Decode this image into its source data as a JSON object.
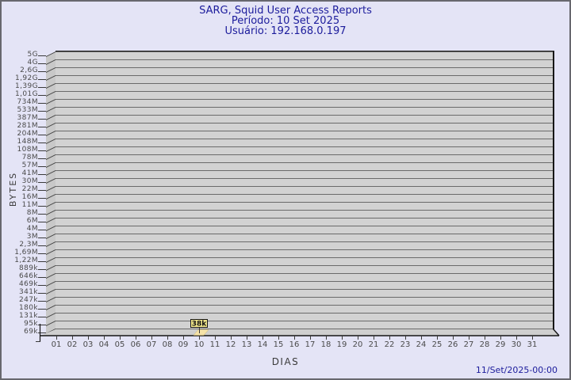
{
  "header": {
    "title": "SARG, Squid User Access Reports",
    "period": "Período: 10 Set 2025",
    "user": "Usuário: 192.168.0.197"
  },
  "footer": {
    "generated": "11/Set/2025-00:00"
  },
  "colors": {
    "background": "#E4E4F6",
    "title_text": "#1C1C9C",
    "plot_band": "#D2D2D2",
    "grid_line": "#6A6A6A",
    "wall": "#C8C8C8",
    "edge": "#161616",
    "axis_text": "#4A4A4A",
    "bar_fill": "#F5E2A8",
    "annotation_fill": "#EFE58A"
  },
  "chart_data": {
    "type": "bar",
    "title": "SARG, Squid User Access Reports",
    "subtitle": [
      "Período: 10 Set 2025",
      "Usuário: 192.168.0.197"
    ],
    "xlabel": "DIAS",
    "ylabel": "BYTES",
    "y_scale": "log",
    "ylim_labels": [
      "69k",
      "5G"
    ],
    "grid": true,
    "legend": "none",
    "y_tick_labels": [
      "5G",
      "4G",
      "2,6G",
      "1,92G",
      "1,39G",
      "1,01G",
      "734M",
      "533M",
      "387M",
      "281M",
      "204M",
      "148M",
      "108M",
      "78M",
      "57M",
      "41M",
      "30M",
      "22M",
      "16M",
      "11M",
      "8M",
      "6M",
      "4M",
      "3M",
      "2,3M",
      "1,69M",
      "1,22M",
      "889k",
      "646k",
      "469k",
      "341k",
      "247k",
      "180k",
      "131k",
      "95k",
      "69k"
    ],
    "categories": [
      "01",
      "02",
      "03",
      "04",
      "05",
      "06",
      "07",
      "08",
      "09",
      "10",
      "11",
      "12",
      "13",
      "14",
      "15",
      "16",
      "17",
      "18",
      "19",
      "20",
      "21",
      "22",
      "23",
      "24",
      "25",
      "26",
      "27",
      "28",
      "29",
      "30",
      "31"
    ],
    "points": [
      {
        "day": "10",
        "label": "38k",
        "value_bytes": 38000
      }
    ]
  }
}
